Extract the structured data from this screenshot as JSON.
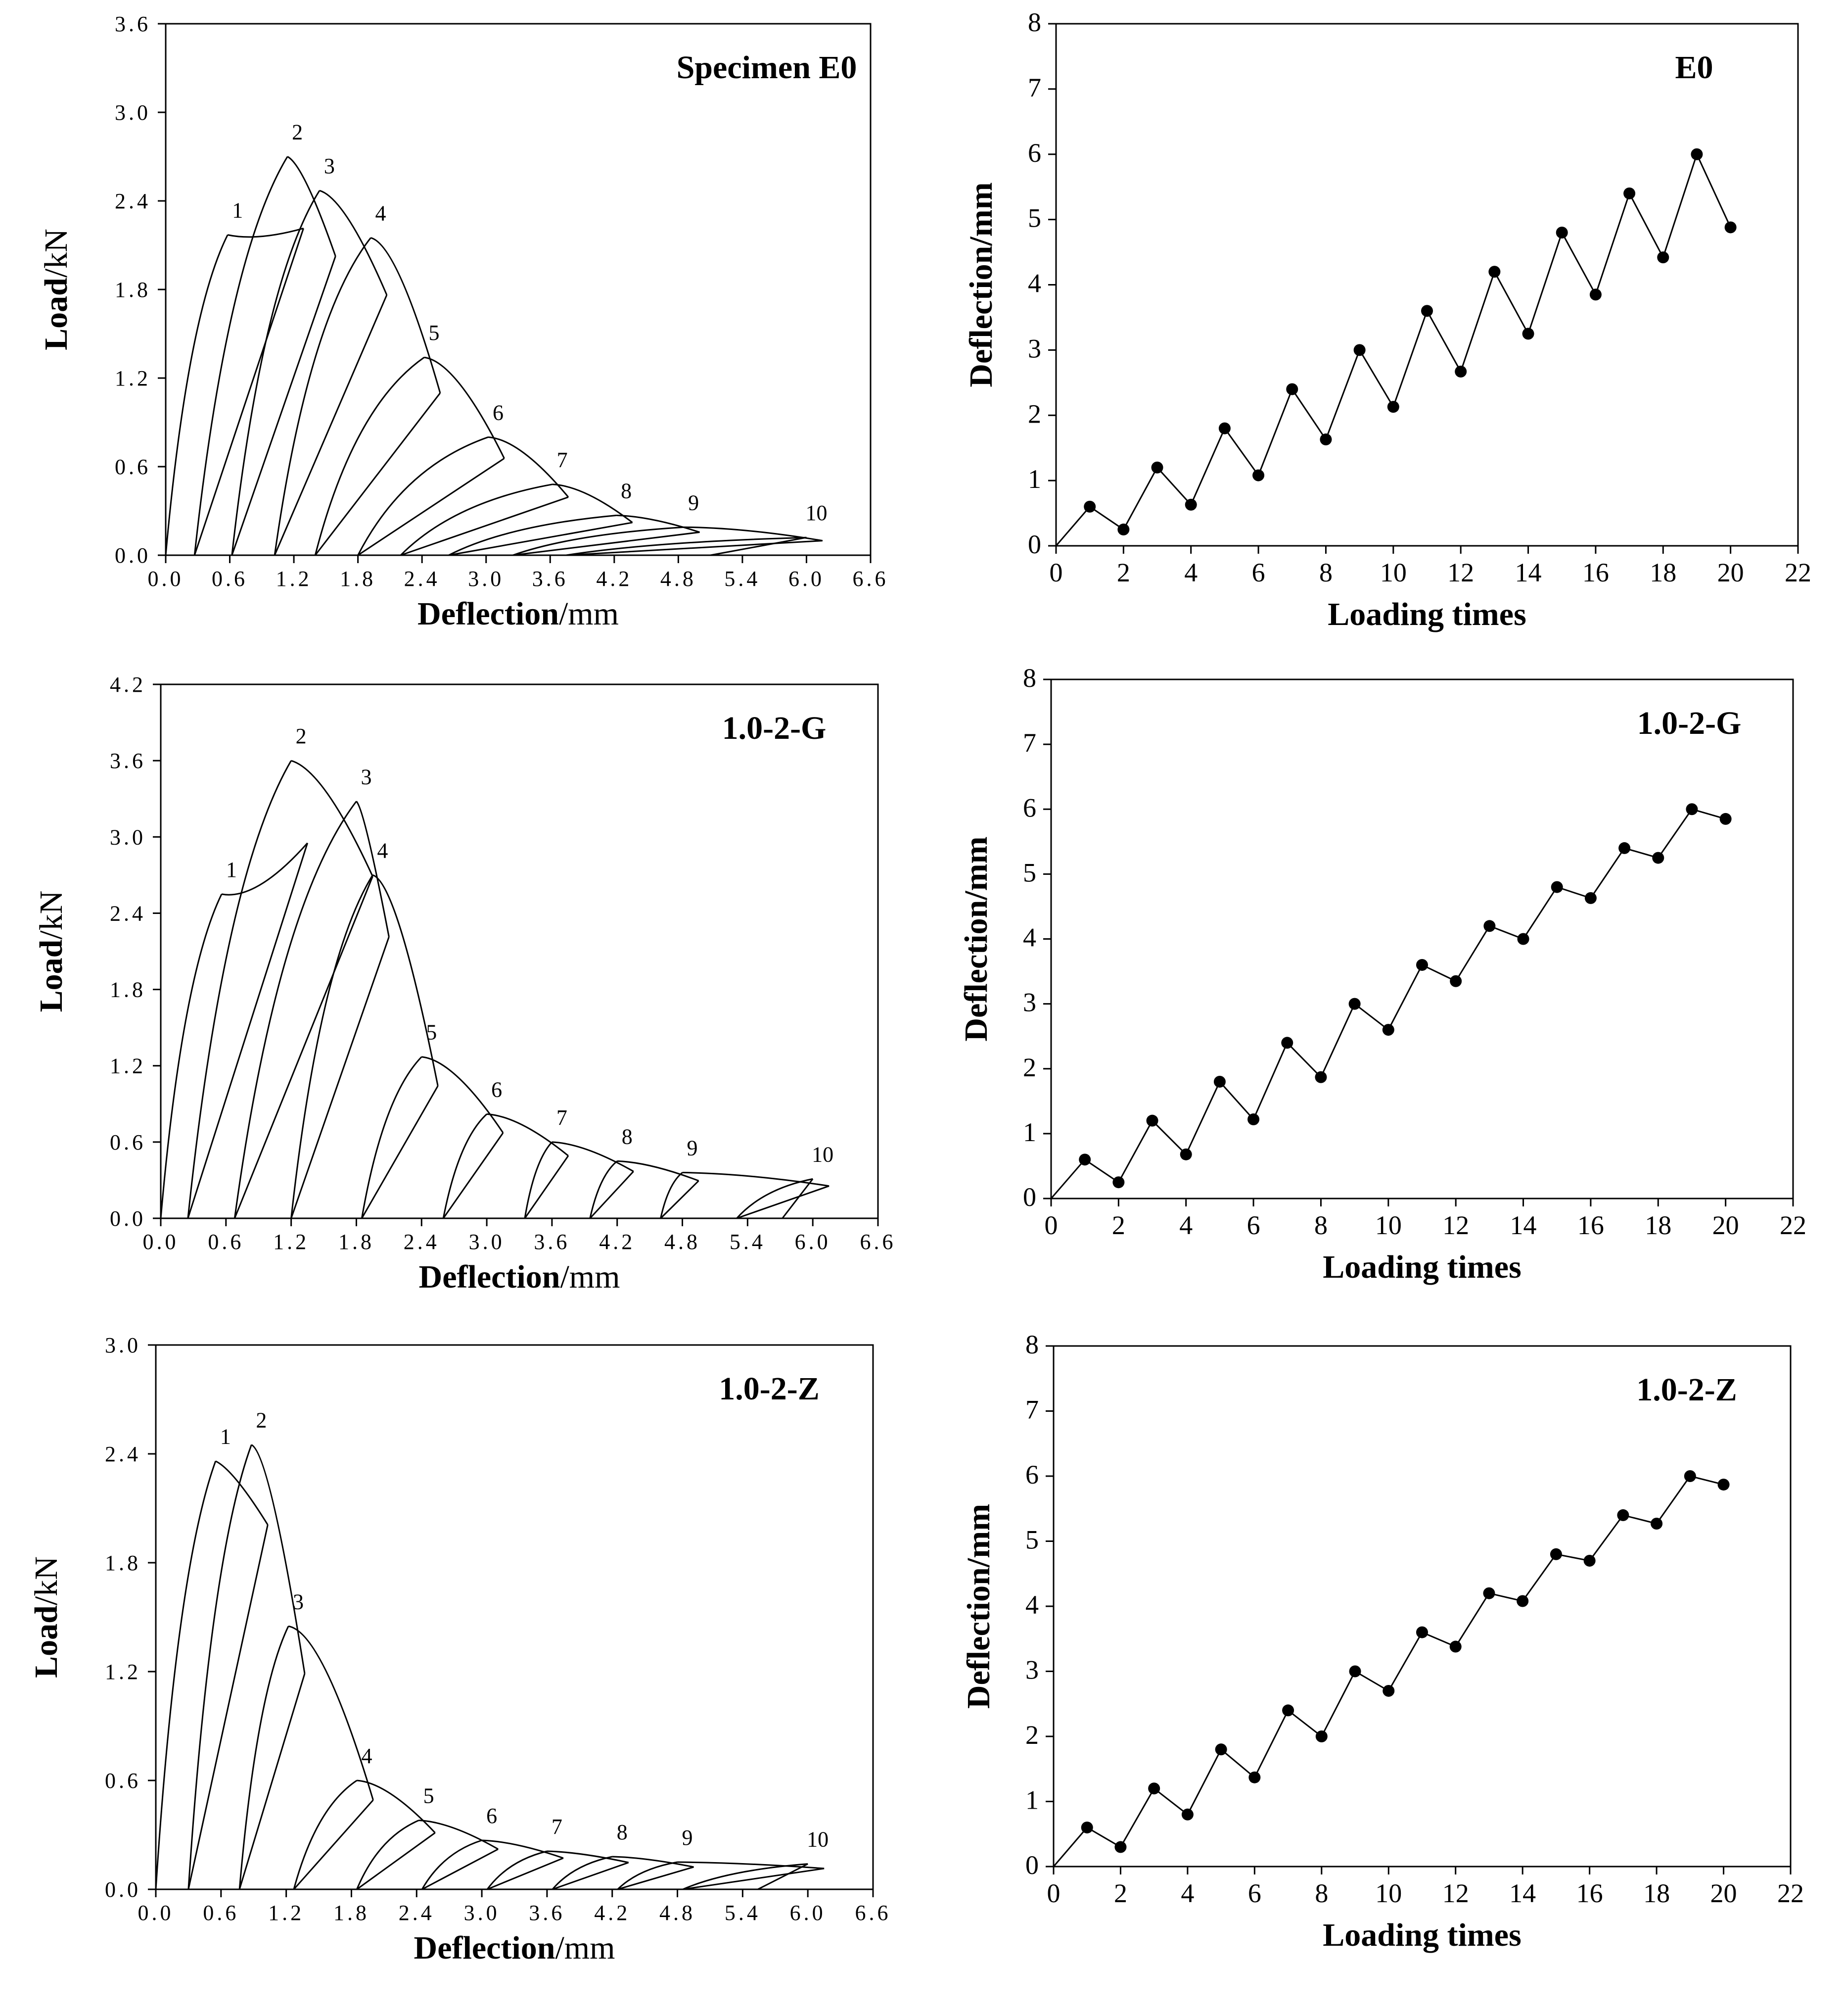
{
  "colors": {
    "line": "#000000",
    "background": "#ffffff"
  },
  "chart_data": [
    {
      "type": "line",
      "title": "Specimen E0",
      "xlabel_bold": "Deflection",
      "xlabel_unit": "/mm",
      "ylabel_bold": "Load",
      "ylabel_unit": "/kN",
      "xlim": [
        0,
        6.6
      ],
      "ylim": [
        0,
        3.6
      ],
      "xticks": [
        "0.0",
        "0.6",
        "1.2",
        "1.8",
        "2.4",
        "3.0",
        "3.6",
        "4.2",
        "4.8",
        "5.4",
        "6.0",
        "6.6"
      ],
      "yticks": [
        "0.0",
        "0.6",
        "1.2",
        "1.8",
        "2.4",
        "3.0",
        "3.6"
      ],
      "grid": false,
      "peaks": [
        {
          "label": "1",
          "x": 0.58,
          "y": 2.17
        },
        {
          "label": "2",
          "x": 1.14,
          "y": 2.7
        },
        {
          "label": "3",
          "x": 1.44,
          "y": 2.47
        },
        {
          "label": "4",
          "x": 1.92,
          "y": 2.15
        },
        {
          "label": "5",
          "x": 2.42,
          "y": 1.34
        },
        {
          "label": "6",
          "x": 3.02,
          "y": 0.8
        },
        {
          "label": "7",
          "x": 3.62,
          "y": 0.48
        },
        {
          "label": "8",
          "x": 4.22,
          "y": 0.27
        },
        {
          "label": "9",
          "x": 4.85,
          "y": 0.19
        },
        {
          "label": "10",
          "x": 6.0,
          "y": 0.12
        }
      ],
      "residuals": [
        0.0,
        0.27,
        0.62,
        1.02,
        1.4,
        1.8,
        2.2,
        2.65,
        3.25,
        3.75
      ]
    },
    {
      "type": "line",
      "title": "E0",
      "xlabel": "Loading times",
      "ylabel": "Deflection/mm",
      "xlim": [
        0,
        22
      ],
      "ylim": [
        0,
        8
      ],
      "xticks": [
        "0",
        "2",
        "4",
        "6",
        "8",
        "10",
        "12",
        "14",
        "16",
        "18",
        "20",
        "22"
      ],
      "yticks": [
        "0",
        "1",
        "2",
        "3",
        "4",
        "5",
        "6",
        "7",
        "8"
      ],
      "grid": false,
      "x": [
        0,
        1,
        2,
        3,
        4,
        5,
        6,
        7,
        8,
        9,
        10,
        11,
        12,
        13,
        14,
        15,
        16,
        17,
        18,
        19,
        20
      ],
      "y": [
        0,
        0.6,
        0.25,
        1.2,
        0.63,
        1.8,
        1.08,
        2.4,
        1.63,
        3.0,
        2.13,
        3.6,
        2.67,
        4.2,
        3.25,
        4.8,
        3.85,
        5.4,
        4.42,
        6.0,
        4.88
      ]
    },
    {
      "type": "line",
      "title": "1.0-2-G",
      "xlabel_bold": "Deflection",
      "xlabel_unit": "/mm",
      "ylabel_bold": "Load",
      "ylabel_unit": "/kN",
      "xlim": [
        0,
        6.6
      ],
      "ylim": [
        0,
        4.2
      ],
      "xticks": [
        "0.0",
        "0.6",
        "1.2",
        "1.8",
        "2.4",
        "3.0",
        "3.6",
        "4.2",
        "4.8",
        "5.4",
        "6.0",
        "6.6"
      ],
      "yticks": [
        "0.0",
        "0.6",
        "1.2",
        "1.8",
        "2.4",
        "3.0",
        "3.6",
        "4.2"
      ],
      "grid": false,
      "peaks": [
        {
          "label": "1",
          "x": 0.56,
          "y": 2.55
        },
        {
          "label": "2",
          "x": 1.2,
          "y": 3.6
        },
        {
          "label": "3",
          "x": 1.8,
          "y": 3.28
        },
        {
          "label": "4",
          "x": 1.95,
          "y": 2.7
        },
        {
          "label": "5",
          "x": 2.4,
          "y": 1.27
        },
        {
          "label": "6",
          "x": 3.0,
          "y": 0.82
        },
        {
          "label": "7",
          "x": 3.6,
          "y": 0.6
        },
        {
          "label": "8",
          "x": 4.2,
          "y": 0.45
        },
        {
          "label": "9",
          "x": 4.8,
          "y": 0.36
        },
        {
          "label": "10",
          "x": 6.0,
          "y": 0.31
        }
      ],
      "residuals": [
        0.0,
        0.25,
        0.68,
        1.2,
        1.85,
        2.6,
        3.35,
        3.95,
        4.6,
        5.3
      ]
    },
    {
      "type": "line",
      "title": "1.0-2-G",
      "xlabel": "Loading times",
      "ylabel": "Deflection/mm",
      "xlim": [
        0,
        22
      ],
      "ylim": [
        0,
        8
      ],
      "xticks": [
        "0",
        "2",
        "4",
        "6",
        "8",
        "10",
        "12",
        "14",
        "16",
        "18",
        "20",
        "22"
      ],
      "yticks": [
        "0",
        "1",
        "2",
        "3",
        "4",
        "5",
        "6",
        "7",
        "8"
      ],
      "grid": false,
      "x": [
        0,
        1,
        2,
        3,
        4,
        5,
        6,
        7,
        8,
        9,
        10,
        11,
        12,
        13,
        14,
        15,
        16,
        17,
        18,
        19,
        20
      ],
      "y": [
        0,
        0.6,
        0.25,
        1.2,
        0.68,
        1.8,
        1.22,
        2.4,
        1.87,
        3.0,
        2.6,
        3.6,
        3.35,
        4.2,
        4.0,
        4.8,
        4.63,
        5.4,
        5.25,
        6.0,
        5.85
      ]
    },
    {
      "type": "line",
      "title": "1.0-2-Z",
      "xlabel_bold": "Deflection",
      "xlabel_unit": "/mm",
      "ylabel_bold": "Load",
      "ylabel_unit": "/kN",
      "xlim": [
        0,
        6.6
      ],
      "ylim": [
        0,
        3.0
      ],
      "xticks": [
        "0.0",
        "0.6",
        "1.2",
        "1.8",
        "2.4",
        "3.0",
        "3.6",
        "4.2",
        "4.8",
        "5.4",
        "6.0",
        "6.6"
      ],
      "yticks": [
        "0.0",
        "0.6",
        "1.2",
        "1.8",
        "2.4",
        "3.0"
      ],
      "grid": false,
      "peaks": [
        {
          "label": "1",
          "x": 0.55,
          "y": 2.36
        },
        {
          "label": "2",
          "x": 0.88,
          "y": 2.45
        },
        {
          "label": "3",
          "x": 1.22,
          "y": 1.45
        },
        {
          "label": "4",
          "x": 1.85,
          "y": 0.6
        },
        {
          "label": "5",
          "x": 2.42,
          "y": 0.38
        },
        {
          "label": "6",
          "x": 3.0,
          "y": 0.27
        },
        {
          "label": "7",
          "x": 3.6,
          "y": 0.21
        },
        {
          "label": "8",
          "x": 4.2,
          "y": 0.18
        },
        {
          "label": "9",
          "x": 4.8,
          "y": 0.15
        },
        {
          "label": "10",
          "x": 6.0,
          "y": 0.14
        }
      ],
      "residuals": [
        0.0,
        0.3,
        0.77,
        1.27,
        1.85,
        2.45,
        3.05,
        3.65,
        4.25,
        4.85
      ]
    },
    {
      "type": "line",
      "title": "1.0-2-Z",
      "xlabel": "Loading times",
      "ylabel": "Deflection/mm",
      "xlim": [
        0,
        22
      ],
      "ylim": [
        0,
        8
      ],
      "xticks": [
        "0",
        "2",
        "4",
        "6",
        "8",
        "10",
        "12",
        "14",
        "16",
        "18",
        "20",
        "22"
      ],
      "yticks": [
        "0",
        "1",
        "2",
        "3",
        "4",
        "5",
        "6",
        "7",
        "8"
      ],
      "grid": false,
      "x": [
        0,
        1,
        2,
        3,
        4,
        5,
        6,
        7,
        8,
        9,
        10,
        11,
        12,
        13,
        14,
        15,
        16,
        17,
        18,
        19,
        20
      ],
      "y": [
        0,
        0.6,
        0.3,
        1.2,
        0.8,
        1.8,
        1.37,
        2.4,
        2.0,
        3.0,
        2.7,
        3.6,
        3.38,
        4.2,
        4.08,
        4.8,
        4.7,
        5.4,
        5.27,
        6.0,
        5.87
      ]
    }
  ]
}
